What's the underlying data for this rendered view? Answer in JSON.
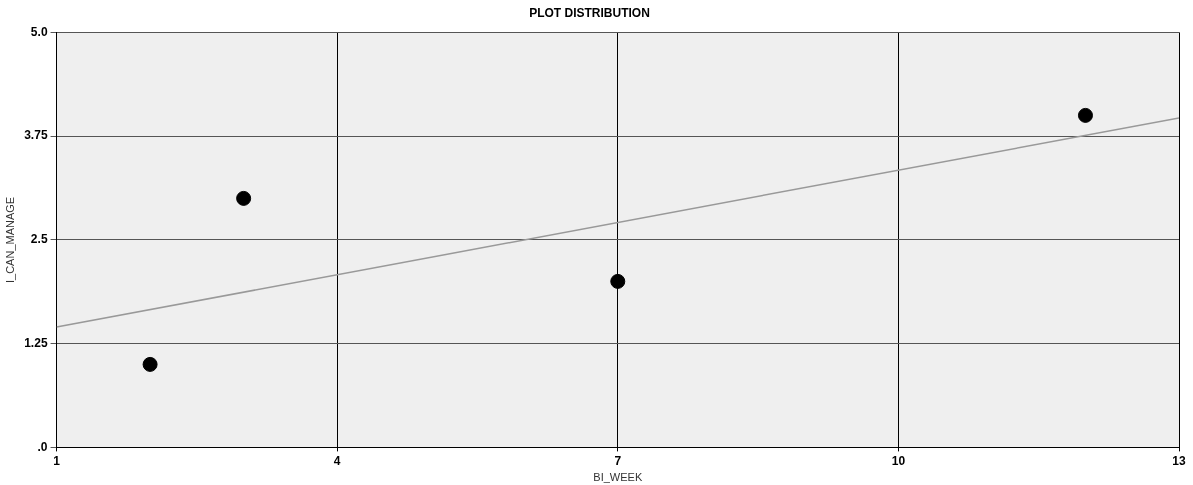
{
  "chart_data": {
    "type": "scatter",
    "title": "PLOT DISTRIBUTION",
    "xlabel": "BI_WEEK",
    "ylabel": "I_CAN_MANAGE",
    "series": [
      {
        "color": "#000000",
        "x": [
          2,
          3,
          7,
          12
        ],
        "values": [
          1,
          3,
          2,
          4
        ],
        "marker": "circle"
      },
      {
        "type": "line",
        "color": "#999999",
        "x": [
          1,
          13
        ],
        "values": [
          1.45,
          3.97
        ],
        "marker": "none"
      }
    ],
    "xlim": [
      1,
      13
    ],
    "xticks": [
      1,
      4,
      7,
      10,
      13
    ],
    "ylim": [
      0,
      5
    ],
    "yticks": [
      {
        "value": 0,
        "label": ".0"
      },
      1.25,
      2.5,
      3.75,
      {
        "value": 5,
        "label": "5.0"
      }
    ],
    "grid": true,
    "legend": false
  }
}
